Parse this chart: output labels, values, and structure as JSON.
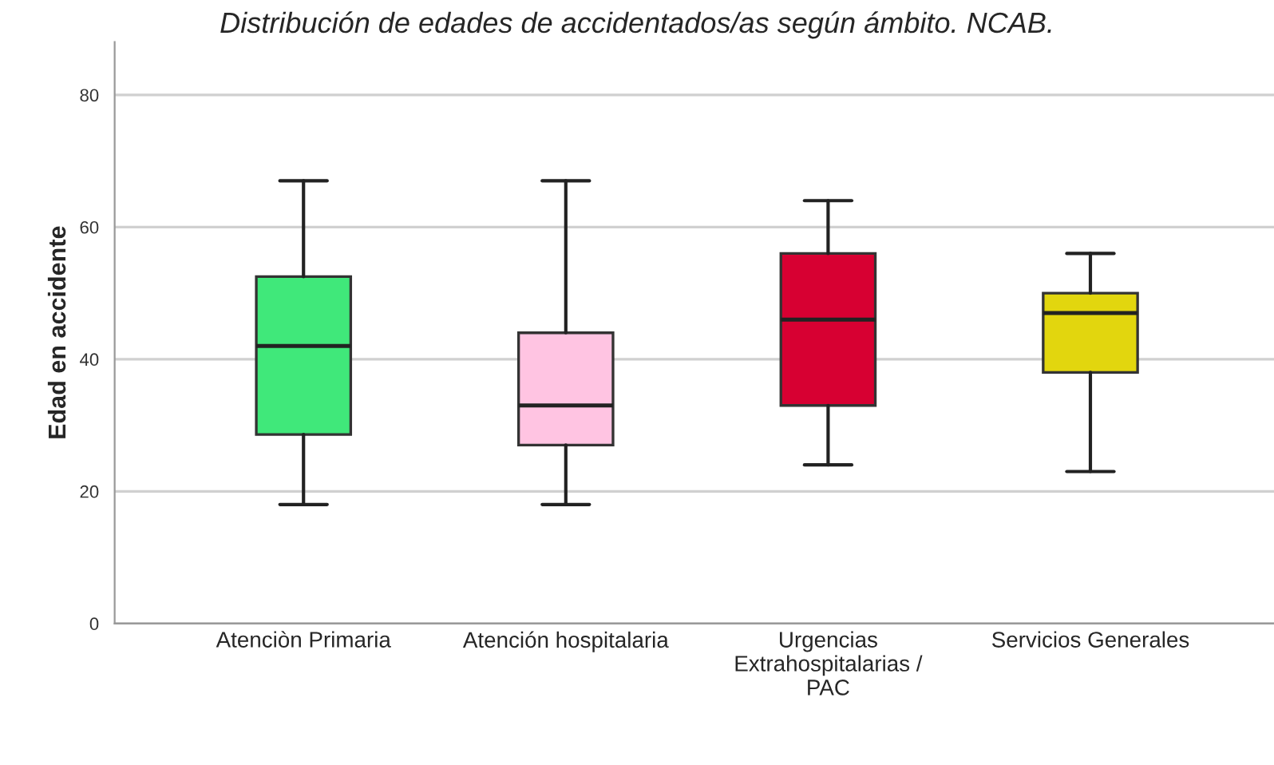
{
  "chart_data": {
    "type": "box",
    "title": "Distribución de edades de accidentados/as según ámbito. NCAB.",
    "ylabel": "Edad en accidente",
    "categories": [
      "Atenciòn Primaria",
      "Atención hospitalaria",
      "Urgencias\nExtrahospitalarias /\nPAC",
      "Servicios Generales"
    ],
    "colors": [
      "#40e87a",
      "#ffc4e2",
      "#d70032",
      "#e2d60e"
    ],
    "boxes": [
      {
        "low": 18,
        "q1": 28.6,
        "median": 42,
        "q3": 52.5,
        "high": 67
      },
      {
        "low": 18,
        "q1": 27,
        "median": 33,
        "q3": 44,
        "high": 67
      },
      {
        "low": 24,
        "q1": 33,
        "median": 46,
        "q3": 56,
        "high": 64
      },
      {
        "low": 23,
        "q1": 38,
        "median": 47,
        "q3": 50,
        "high": 56
      }
    ],
    "ylim": [
      0,
      88
    ],
    "yticks": [
      0,
      20,
      40,
      60,
      80
    ],
    "grid": "y"
  }
}
